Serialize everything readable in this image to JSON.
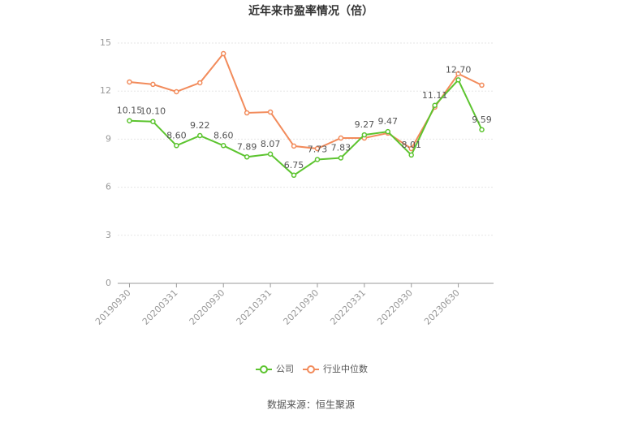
{
  "chart_data": {
    "type": "line",
    "title": "近年来市盈率情况（倍）",
    "categories": [
      "20190930",
      null,
      "20200331",
      null,
      "20200930",
      null,
      "20210331",
      null,
      "20210930",
      null,
      "20220331",
      null,
      "20220930",
      null,
      "20230630",
      null
    ],
    "series": [
      {
        "name": "公司",
        "color": "#5cc42f",
        "values": [
          10.15,
          10.1,
          8.6,
          9.22,
          8.6,
          7.89,
          8.07,
          6.75,
          7.73,
          7.83,
          9.27,
          9.47,
          8.01,
          11.11,
          12.7,
          9.59
        ],
        "value_labels": [
          "10.15",
          "10.10",
          "8.60",
          "9.22",
          "8.60",
          "7.89",
          "8.07",
          "6.75",
          "7.73",
          "7.83",
          "9.27",
          "9.47",
          "8.01",
          "11.11",
          "12.70",
          "9.59"
        ]
      },
      {
        "name": "行业中位数",
        "color": "#f28b5b",
        "values": [
          12.57,
          12.42,
          11.96,
          12.52,
          14.34,
          10.64,
          10.69,
          8.57,
          8.41,
          9.07,
          9.07,
          9.38,
          8.41,
          11.0,
          13.08,
          12.37
        ]
      }
    ],
    "ylim": [
      0,
      15
    ],
    "yticks": [
      0,
      3,
      6,
      9,
      12,
      15
    ],
    "grid": true,
    "source": "数据来源：恒生聚源"
  }
}
